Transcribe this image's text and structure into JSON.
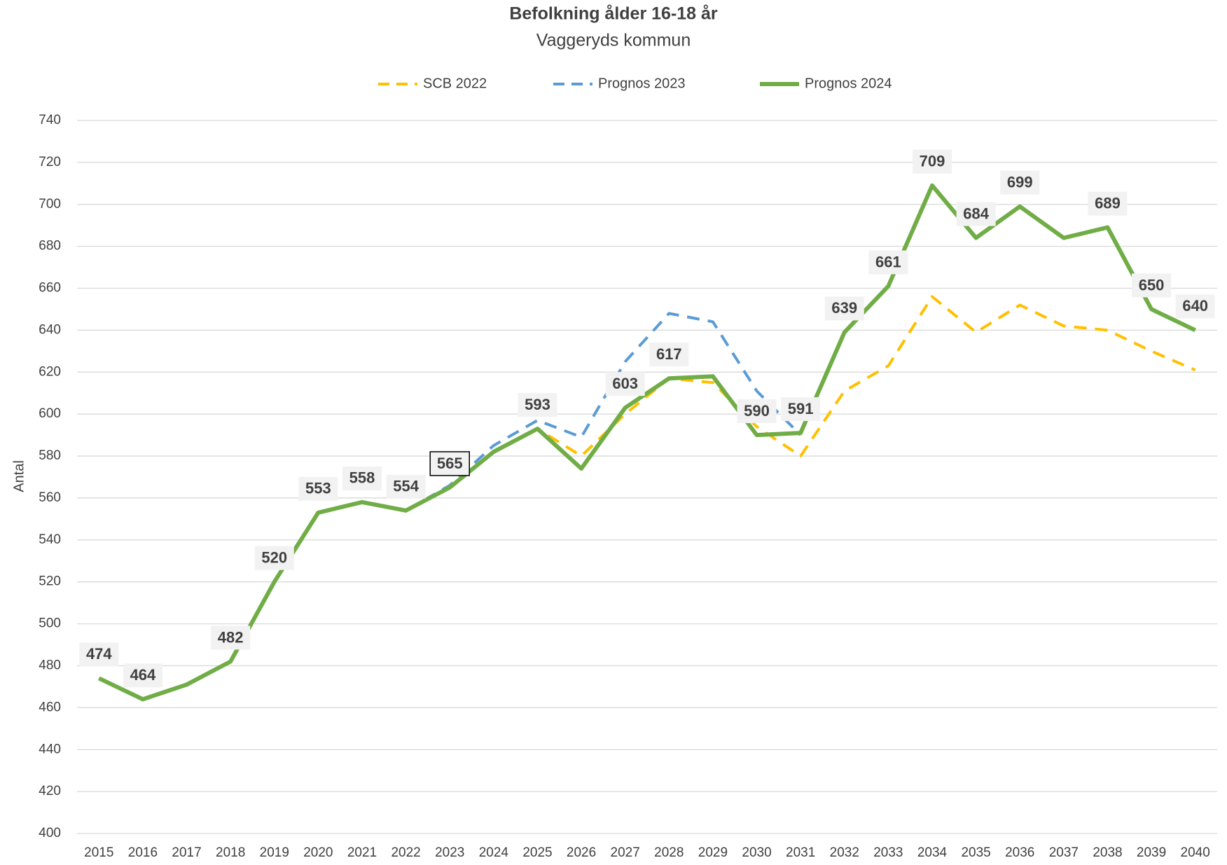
{
  "chart_data": {
    "type": "line",
    "title": "Befolkning ålder 16-18 år",
    "subtitle": "Vaggeryds kommun",
    "y_label": "Antal",
    "categories": [
      "2015",
      "2016",
      "2017",
      "2018",
      "2019",
      "2020",
      "2021",
      "2022",
      "2023",
      "2024",
      "2025",
      "2026",
      "2027",
      "2028",
      "2029",
      "2030",
      "2031",
      "2032",
      "2033",
      "2034",
      "2035",
      "2036",
      "2037",
      "2038",
      "2039",
      "2040"
    ],
    "series": [
      {
        "name": "SCB 2022",
        "color": "#ffc000",
        "dash": true,
        "values": [
          null,
          null,
          null,
          null,
          null,
          null,
          null,
          554,
          565,
          582,
          593,
          580,
          600,
          617,
          615,
          594,
          580,
          611,
          623,
          656,
          639,
          652,
          642,
          640,
          630,
          621
        ]
      },
      {
        "name": "Prognos 2023",
        "color": "#5b9bd5",
        "dash": true,
        "values": [
          null,
          null,
          null,
          null,
          null,
          null,
          null,
          554,
          566,
          585,
          597,
          589,
          625,
          648,
          644,
          611,
          590,
          null,
          null,
          null,
          null,
          null,
          null,
          null,
          null,
          null
        ]
      },
      {
        "name": "Prognos 2024",
        "color": "#70ad47",
        "dash": false,
        "values": [
          474,
          464,
          471,
          482,
          520,
          553,
          558,
          554,
          565,
          582,
          593,
          574,
          603,
          617,
          618,
          590,
          591,
          639,
          661,
          709,
          684,
          699,
          684,
          689,
          650,
          640
        ],
        "value_labels": [
          "474",
          "464",
          null,
          "482",
          "520",
          "553",
          "558",
          "554",
          "565",
          null,
          "593",
          null,
          "603",
          "617",
          null,
          "590",
          "591",
          "639",
          "661",
          "709",
          "684",
          "699",
          null,
          "689",
          "650",
          "640"
        ]
      }
    ],
    "ylim": [
      400,
      740
    ],
    "yticks": [
      400,
      420,
      440,
      460,
      480,
      500,
      520,
      540,
      560,
      580,
      600,
      620,
      640,
      660,
      680,
      700,
      720,
      740
    ],
    "grid": true,
    "legend": "top"
  }
}
